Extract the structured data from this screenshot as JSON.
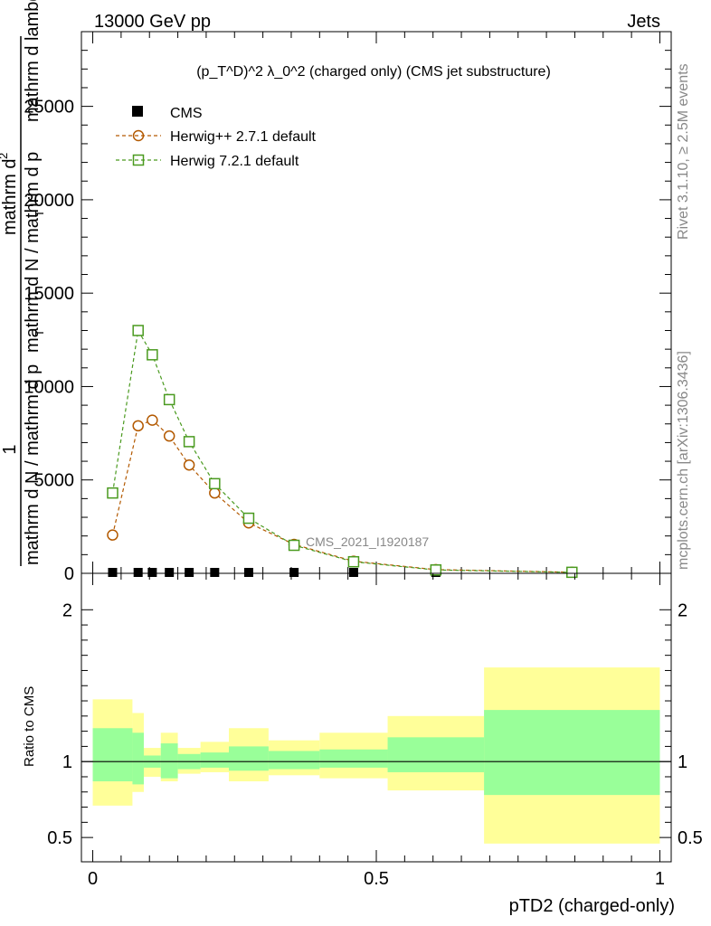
{
  "header": {
    "left": "13000 GeV pp",
    "right": "Jets"
  },
  "side_labels": {
    "rivet": "Rivet 3.1.10, ≥ 2.5M events",
    "mcplots": "mcplots.cern.ch [arXiv:1306.3436]"
  },
  "watermark": "CMS_2021_I1920187",
  "chart_data": [
    {
      "type": "line",
      "title": "(p_T^D)^2 λ_0^2 (charged only) (CMS jet substructure)",
      "ylabel": "1 / mathrm d N / mathrm d p_T mathrm d^2N / mathrm d p_T mathrm d lambda",
      "ylabel_parts": [
        "1",
        "mathrm d N / mathrm d p",
        "mathrm d N / mathrm d p",
        "mathrm d",
        "mathrm d lambda",
        "T",
        "T",
        "2"
      ],
      "xlim": [
        -0.02,
        1.02
      ],
      "ylim": [
        0,
        29000
      ],
      "yticks": [
        0,
        5000,
        10000,
        15000,
        20000,
        25000
      ],
      "ytick_labels": [
        "0",
        "5000",
        "10000",
        "15000",
        "20000",
        "25000"
      ],
      "legend_position": "top-left",
      "series": [
        {
          "name": "CMS",
          "color": "#000000",
          "marker": "square-filled",
          "x": [
            0.035,
            0.08,
            0.105,
            0.135,
            0.17,
            0.215,
            0.275,
            0.355,
            0.46,
            0.605,
            0.845
          ],
          "y": [
            20,
            30,
            40,
            40,
            30,
            25,
            20,
            15,
            10,
            5,
            2
          ]
        },
        {
          "name": "Herwig++ 2.7.1 default",
          "color": "#b35900",
          "marker": "circle-open",
          "x": [
            0.035,
            0.08,
            0.105,
            0.135,
            0.17,
            0.215,
            0.275,
            0.355,
            0.46,
            0.605,
            0.845
          ],
          "y": [
            2050,
            7900,
            8200,
            7350,
            5800,
            4300,
            2700,
            1550,
            650,
            200,
            60
          ]
        },
        {
          "name": "Herwig 7.2.1 default",
          "color": "#4a9a1f",
          "marker": "square-open",
          "x": [
            0.035,
            0.08,
            0.105,
            0.135,
            0.17,
            0.215,
            0.275,
            0.355,
            0.46,
            0.605,
            0.845
          ],
          "y": [
            4300,
            13000,
            11700,
            9300,
            7050,
            4800,
            2950,
            1500,
            620,
            180,
            55
          ]
        }
      ]
    },
    {
      "type": "area",
      "ylabel": "Ratio to CMS",
      "xlabel": "pTD2 (charged-only)",
      "xlim": [
        -0.02,
        1.02
      ],
      "ylim": [
        0.34,
        2.24
      ],
      "xticks": [
        0,
        0.5,
        1
      ],
      "xtick_labels": [
        "0",
        "0.5",
        "1"
      ],
      "yticks": [
        0.5,
        1,
        2
      ],
      "ytick_labels": [
        "0.5",
        "1",
        "2"
      ],
      "reference_line": 1,
      "bands": {
        "bins": [
          0.0,
          0.07,
          0.09,
          0.12,
          0.15,
          0.19,
          0.24,
          0.31,
          0.4,
          0.52,
          0.69,
          1.0
        ],
        "yellow_color": "#ffff99",
        "green_color": "#99ff99",
        "yellow_low": [
          0.71,
          0.8,
          0.9,
          0.87,
          0.92,
          0.93,
          0.87,
          0.91,
          0.89,
          0.81,
          0.46
        ],
        "yellow_high": [
          1.41,
          1.32,
          1.09,
          1.19,
          1.09,
          1.13,
          1.22,
          1.14,
          1.19,
          1.3,
          1.62
        ],
        "green_low": [
          0.87,
          0.85,
          0.96,
          0.89,
          0.95,
          0.96,
          0.94,
          0.95,
          0.96,
          0.93,
          0.78
        ],
        "green_high": [
          1.22,
          1.19,
          1.04,
          1.12,
          1.05,
          1.06,
          1.1,
          1.07,
          1.08,
          1.16,
          1.34
        ]
      }
    }
  ]
}
